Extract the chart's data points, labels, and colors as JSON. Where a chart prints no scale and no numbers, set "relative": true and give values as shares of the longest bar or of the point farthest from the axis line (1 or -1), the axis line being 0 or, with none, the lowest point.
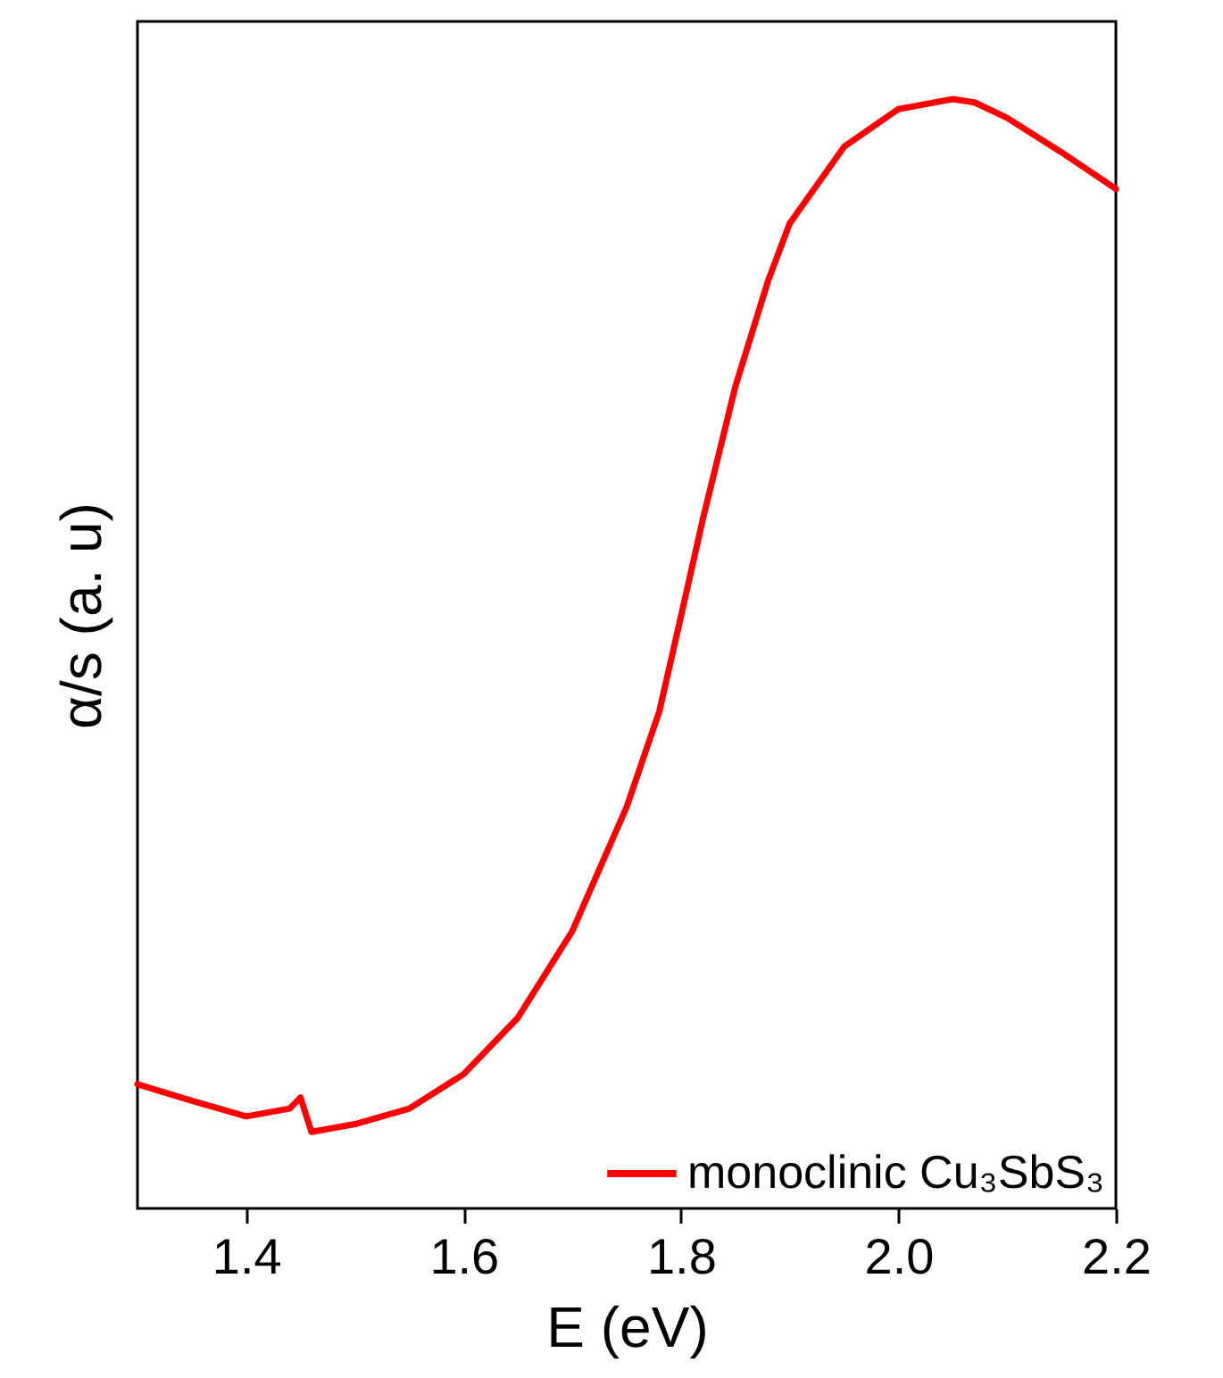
{
  "chart_data": {
    "type": "line",
    "xlabel": "E (eV)",
    "ylabel": "α/s (a. u)",
    "relative": true,
    "legend": "bottom right",
    "grid": false,
    "xlim": [
      1.3,
      2.2
    ],
    "xticks": [
      1.4,
      1.6,
      1.8,
      {
        "value": 2,
        "label": "2.0"
      },
      2.2
    ],
    "x": [
      1.3,
      1.35,
      1.4,
      1.44,
      1.45,
      1.46,
      1.5,
      1.55,
      1.6,
      1.65,
      1.7,
      1.75,
      1.78,
      1.8,
      1.82,
      1.85,
      1.88,
      1.9,
      1.95,
      2.0,
      2.05,
      2.07,
      2.1,
      2.15,
      2.2
    ],
    "series": [
      {
        "name": "monoclinic Cu₃SbS₃",
        "color": "#ff0000",
        "values": [
          0.112,
          0.097,
          0.083,
          0.09,
          0.1,
          0.069,
          0.076,
          0.09,
          0.121,
          0.172,
          0.25,
          0.362,
          0.448,
          0.534,
          0.621,
          0.741,
          0.836,
          0.888,
          0.957,
          0.991,
          1,
          0.997,
          0.983,
          0.952,
          0.919
        ]
      }
    ]
  }
}
